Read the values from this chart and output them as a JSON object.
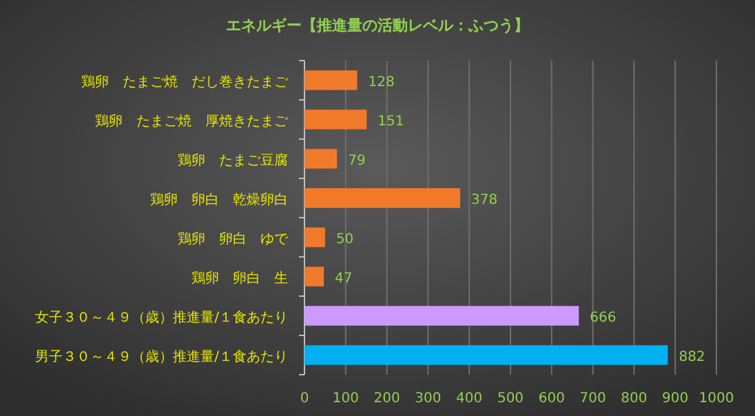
{
  "chart_data": {
    "type": "bar",
    "orientation": "horizontal",
    "title": "エネルギー【推進量の活動レベル：ふつう】",
    "categories": [
      "鶏卵　たまご焼　だし巻きたまご",
      "鶏卵　たまご焼　厚焼きたまご",
      "鶏卵　たまご豆腐",
      "鶏卵　卵白　乾燥卵白",
      "鶏卵　卵白　ゆで",
      "鶏卵　卵白　生",
      "女子３０～４９（歳）推進量/１食あたり",
      "男子３０～４９（歳）推進量/１食あたり"
    ],
    "values": [
      128,
      151,
      79,
      378,
      50,
      47,
      666,
      882
    ],
    "colors": [
      "#f07a2a",
      "#f07a2a",
      "#f07a2a",
      "#f07a2a",
      "#f07a2a",
      "#f07a2a",
      "#cc99ff",
      "#00b0f0"
    ],
    "xlim": [
      0,
      1000
    ],
    "xticks": [
      0,
      100,
      200,
      300,
      400,
      500,
      600,
      700,
      800,
      900,
      1000
    ],
    "grid": "x",
    "data_labels": true
  }
}
